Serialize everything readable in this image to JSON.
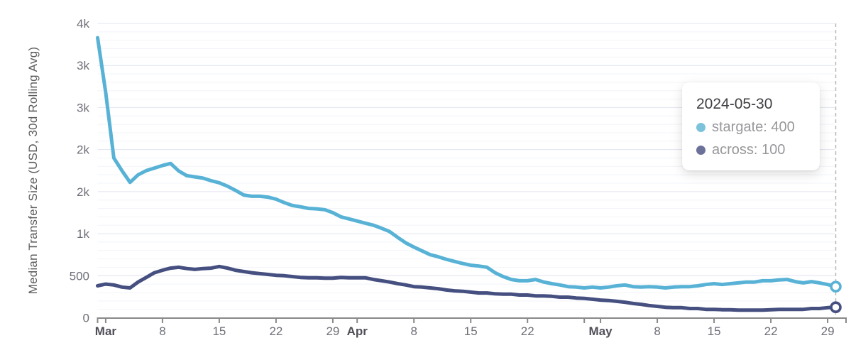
{
  "chart_data": {
    "type": "line",
    "title": "",
    "xlabel": "",
    "ylabel": "Median Transfer Size (USD, 30d Rolling Avg)",
    "x_start_date": "2024-02-29",
    "x_end_date": "2024-05-30",
    "x_days_span": 91,
    "values_cadence": "daily",
    "ylim": [
      0,
      3500
    ],
    "grid": {
      "horizontal_major_step": 500,
      "horizontal_minor_step": 100,
      "vertical": false
    },
    "legend_position": "tooltip-only",
    "y_ticks": [
      {
        "value": 0,
        "label": "0"
      },
      {
        "value": 500,
        "label": "500"
      },
      {
        "value": 1000,
        "label": "1k"
      },
      {
        "value": 1500,
        "label": "2k"
      },
      {
        "value": 2000,
        "label": "2k"
      },
      {
        "value": 2500,
        "label": "3k"
      },
      {
        "value": 3000,
        "label": "3k"
      },
      {
        "value": 3500,
        "label": "4k"
      }
    ],
    "x_ticks": [
      {
        "day": 1,
        "label": "Mar",
        "bold": true
      },
      {
        "day": 8,
        "label": "8",
        "bold": false
      },
      {
        "day": 15,
        "label": "15",
        "bold": false
      },
      {
        "day": 22,
        "label": "22",
        "bold": false
      },
      {
        "day": 29,
        "label": "29",
        "bold": false
      },
      {
        "day": 32,
        "label": "Apr",
        "bold": true
      },
      {
        "day": 39,
        "label": "8",
        "bold": false
      },
      {
        "day": 46,
        "label": "15",
        "bold": false
      },
      {
        "day": 53,
        "label": "22",
        "bold": false
      },
      {
        "day": 60,
        "label": "",
        "bold": false
      },
      {
        "day": 62,
        "label": "May",
        "bold": true
      },
      {
        "day": 69,
        "label": "8",
        "bold": false
      },
      {
        "day": 76,
        "label": "15",
        "bold": false
      },
      {
        "day": 83,
        "label": "22",
        "bold": false
      },
      {
        "day": 90,
        "label": "29",
        "bold": false
      }
    ],
    "series": [
      {
        "name": "stargate",
        "color": "#58b2d6",
        "dot_color": "#7cc2da",
        "values": [
          3330,
          2680,
          1900,
          1750,
          1610,
          1700,
          1750,
          1780,
          1810,
          1835,
          1745,
          1690,
          1675,
          1660,
          1630,
          1605,
          1565,
          1515,
          1460,
          1445,
          1445,
          1435,
          1410,
          1370,
          1335,
          1320,
          1300,
          1295,
          1285,
          1250,
          1200,
          1175,
          1150,
          1125,
          1100,
          1065,
          1025,
          955,
          890,
          840,
          795,
          750,
          725,
          695,
          670,
          645,
          625,
          615,
          600,
          535,
          490,
          455,
          440,
          440,
          455,
          425,
          405,
          390,
          370,
          365,
          355,
          365,
          355,
          365,
          380,
          390,
          370,
          365,
          370,
          365,
          355,
          365,
          370,
          370,
          380,
          395,
          405,
          395,
          405,
          415,
          425,
          425,
          440,
          440,
          450,
          455,
          430,
          415,
          430,
          415,
          395,
          370
        ]
      },
      {
        "name": "across",
        "color": "#454f80",
        "dot_color": "#6b7199",
        "values": [
          380,
          400,
          390,
          365,
          355,
          425,
          480,
          535,
          565,
          590,
          600,
          585,
          575,
          585,
          590,
          610,
          590,
          565,
          550,
          535,
          525,
          515,
          505,
          500,
          490,
          480,
          475,
          475,
          470,
          470,
          480,
          475,
          475,
          475,
          455,
          440,
          425,
          405,
          390,
          370,
          365,
          355,
          345,
          330,
          320,
          315,
          305,
          295,
          295,
          285,
          280,
          280,
          270,
          270,
          260,
          260,
          255,
          245,
          245,
          235,
          230,
          220,
          210,
          205,
          195,
          185,
          170,
          160,
          145,
          135,
          125,
          120,
          120,
          110,
          110,
          100,
          100,
          95,
          95,
          90,
          90,
          90,
          90,
          95,
          100,
          100,
          100,
          100,
          110,
          110,
          120,
          125
        ]
      }
    ],
    "crosshair_date": "2024-05-30"
  },
  "tooltip": {
    "date": "2024-05-30",
    "rows": [
      {
        "series": "stargate",
        "text": "stargate: 400"
      },
      {
        "series": "across",
        "text": "across: 100"
      }
    ]
  }
}
